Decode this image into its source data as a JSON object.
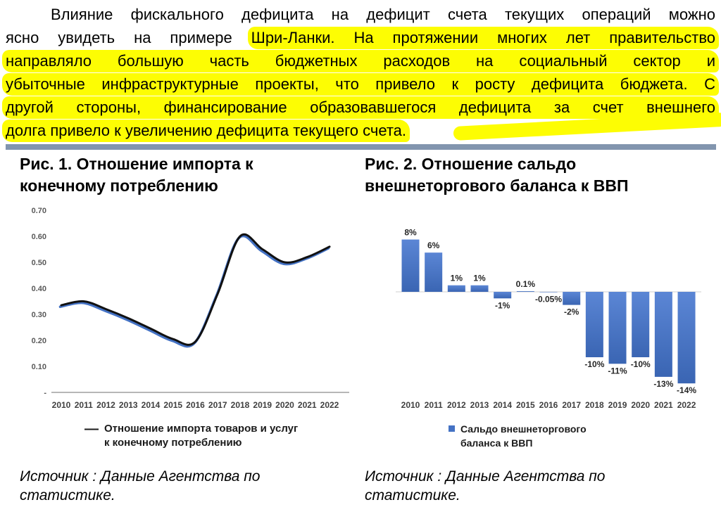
{
  "colors": {
    "highlight": "#fdfd03",
    "divider": "#8295ae",
    "bar_blue": "#4472c4",
    "line_black": "#111111",
    "line_shadow_blue": "#4472c4"
  },
  "paragraph": {
    "lines": [
      {
        "indent": true,
        "justify": true,
        "segments": [
          {
            "text": "Влияние фискального дефицита на дефицит счета текущих операций можно",
            "hl": false
          }
        ]
      },
      {
        "indent": false,
        "justify": true,
        "segments": [
          {
            "text": "ясно увидеть на примере ",
            "hl": false
          },
          {
            "text": "Шри-Ланки. На протяжении многих лет правительство",
            "hl": true
          }
        ]
      },
      {
        "indent": false,
        "justify": true,
        "segments": [
          {
            "text": "направляло большую часть бюджетных расходов на социальный сектор и",
            "hl": true
          }
        ]
      },
      {
        "indent": false,
        "justify": true,
        "segments": [
          {
            "text": "убыточные инфраструктурные проекты, что привело к росту дефицита бюджета. С",
            "hl": true
          }
        ]
      },
      {
        "indent": false,
        "justify": true,
        "segments": [
          {
            "text": "другой стороны, финансирование образовавшегося дефицита за счет внешнего",
            "hl": true
          }
        ]
      },
      {
        "indent": false,
        "justify": false,
        "segments": [
          {
            "text": "долга привело к увеличению дефицита текущего счета.",
            "hl": true
          }
        ]
      }
    ]
  },
  "figure1": {
    "title_lines": [
      "Рис. 1. Отношение импорта к",
      "конечному потреблению"
    ],
    "legend_marker": "—",
    "legend_lines": [
      "Отношение импорта товаров и услуг",
      "к конечному потреблению"
    ],
    "source": "Источник : Данные Агентства по статистике."
  },
  "figure2": {
    "title_lines": [
      "Рис. 2. Отношение сальдо",
      "внешнеторгового баланса к ВВП"
    ],
    "legend_lines": [
      "Сальдо внешнеторгового",
      "баланса к ВВП"
    ],
    "source": "Источник : Данные Агентства по статистике."
  },
  "chart_data": [
    {
      "type": "line",
      "title": "Рис. 1. Отношение импорта к конечному потреблению",
      "x": [
        2010,
        2011,
        2012,
        2013,
        2014,
        2015,
        2016,
        2017,
        2018,
        2019,
        2020,
        2021,
        2022
      ],
      "values": [
        0.335,
        0.35,
        0.32,
        0.285,
        0.245,
        0.205,
        0.195,
        0.38,
        0.6,
        0.55,
        0.5,
        0.52,
        0.56
      ],
      "yticks": [
        0.7,
        0.6,
        0.5,
        0.4,
        0.3,
        0.2,
        0.1,
        0
      ],
      "ytick_labels": [
        "0.70",
        "0.60",
        "0.50",
        "0.40",
        "0.30",
        "0.20",
        "0.10",
        "-"
      ],
      "ylim": [
        0,
        0.7
      ],
      "grid": false,
      "legend": "Отношение импорта товаров и услуг к конечному потреблению",
      "legend_position": "bottom",
      "line_color": "#111111",
      "line_shadow_color": "#4472c4"
    },
    {
      "type": "bar",
      "title": "Рис. 2. Отношение сальдо внешнеторгового баланса к ВВП",
      "categories": [
        2010,
        2011,
        2012,
        2013,
        2014,
        2015,
        2016,
        2017,
        2018,
        2019,
        2020,
        2021,
        2022
      ],
      "values": [
        8,
        6,
        1,
        1,
        -1,
        0.1,
        -0.05,
        -2,
        -10,
        -11,
        -10,
        -13,
        -14
      ],
      "labels": [
        "8%",
        "6%",
        "1%",
        "1%",
        "-1%",
        "0.1%",
        "-0.05%",
        "-2%",
        "-10%",
        "-11%",
        "-10%",
        "-13%",
        "-14%"
      ],
      "ylim": [
        -15,
        9
      ],
      "grid": false,
      "legend": "Сальдо внешнеторгового баланса к ВВП",
      "legend_position": "bottom",
      "bar_color": "#4472c4"
    }
  ]
}
